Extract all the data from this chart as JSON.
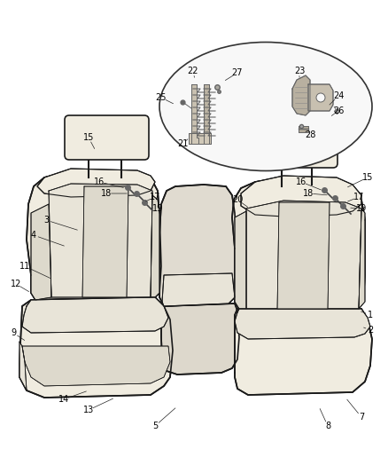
{
  "background_color": "#ffffff",
  "fig_width": 4.38,
  "fig_height": 5.33,
  "dpi": 100,
  "seat_fill": "#f0ece0",
  "seat_edge": "#1a1a1a",
  "seat_lw": 1.2,
  "inner_fill": "#e8e4d8",
  "stripe_fill": "#ddd9cc",
  "ellipse_fill": "#f8f8f8",
  "ellipse_edge": "#333333",
  "label_fontsize": 7.0,
  "text_color": "#000000",
  "part_detail_color": "#555555"
}
